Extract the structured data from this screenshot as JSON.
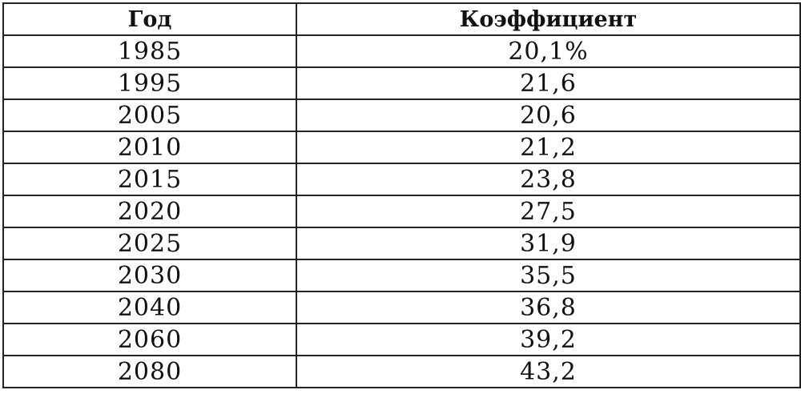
{
  "table": {
    "headers": {
      "year": "Год",
      "coef": "Коэффициент"
    },
    "rows": [
      {
        "year": "1985",
        "coef": "20,1%"
      },
      {
        "year": "1995",
        "coef": "21,6"
      },
      {
        "year": "2005",
        "coef": "20,6"
      },
      {
        "year": "2010",
        "coef": "21,2"
      },
      {
        "year": "2015",
        "coef": "23,8"
      },
      {
        "year": "2020",
        "coef": "27,5"
      },
      {
        "year": "2025",
        "coef": "31,9"
      },
      {
        "year": "2030",
        "coef": "35,5"
      },
      {
        "year": "2040",
        "coef": "36,8"
      },
      {
        "year": "2060",
        "coef": "39,2"
      },
      {
        "year": "2080",
        "coef": "43,2"
      }
    ]
  }
}
